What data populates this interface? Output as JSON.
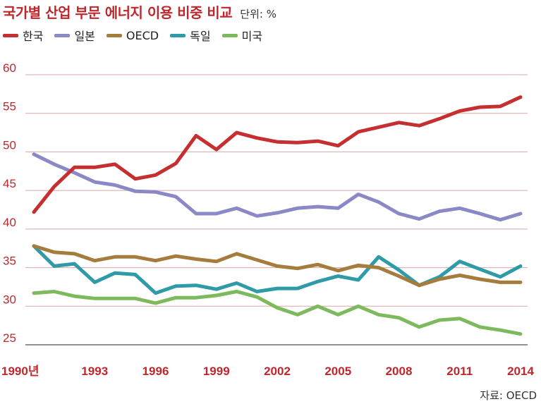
{
  "chart_data": {
    "type": "line",
    "title": "국가별 산업 부문 에너지 이용 비중 비교",
    "unit": "단위: %",
    "source": "자료: OECD",
    "ylim": [
      25,
      60
    ],
    "yticks": [
      25,
      30,
      35,
      40,
      45,
      50,
      55,
      60
    ],
    "x": [
      1990,
      1991,
      1992,
      1993,
      1994,
      1995,
      1996,
      1997,
      1998,
      1999,
      2000,
      2001,
      2002,
      2003,
      2004,
      2005,
      2006,
      2007,
      2008,
      2009,
      2010,
      2011,
      2012,
      2013,
      2014
    ],
    "xticks": [
      {
        "year": 1990,
        "label": "1990년"
      },
      {
        "year": 1993,
        "label": "1993"
      },
      {
        "year": 1996,
        "label": "1996"
      },
      {
        "year": 1999,
        "label": "1999"
      },
      {
        "year": 2002,
        "label": "2002"
      },
      {
        "year": 2005,
        "label": "2005"
      },
      {
        "year": 2008,
        "label": "2008"
      },
      {
        "year": 2011,
        "label": "2011"
      },
      {
        "year": 2014,
        "label": "2014"
      }
    ],
    "grid": true,
    "legend_position": "top-left",
    "series": [
      {
        "name": "한국",
        "color": "#c52f2f",
        "values": [
          42.2,
          45.5,
          48.0,
          48.0,
          48.4,
          46.5,
          47.0,
          48.5,
          52.1,
          50.3,
          52.5,
          51.8,
          51.3,
          51.2,
          51.4,
          50.8,
          52.6,
          53.2,
          53.8,
          53.4,
          54.3,
          55.3,
          55.8,
          55.9,
          57.1
        ]
      },
      {
        "name": "일본",
        "color": "#8b88c7",
        "values": [
          49.7,
          48.4,
          47.3,
          46.1,
          45.7,
          44.9,
          44.8,
          44.2,
          42.0,
          42.0,
          42.7,
          41.7,
          42.1,
          42.7,
          42.9,
          42.7,
          44.5,
          43.5,
          42.0,
          41.3,
          42.3,
          42.7,
          42.0,
          41.2,
          42.0
        ]
      },
      {
        "name": "OECD",
        "color": "#a67c3d",
        "values": [
          37.8,
          37.0,
          36.8,
          35.9,
          36.4,
          36.4,
          35.9,
          36.5,
          36.1,
          35.8,
          36.8,
          36.0,
          35.2,
          34.9,
          35.4,
          34.6,
          35.3,
          35.0,
          33.9,
          32.7,
          33.5,
          34.0,
          33.5,
          33.1,
          33.1
        ]
      },
      {
        "name": "독일",
        "color": "#2f9aa8",
        "values": [
          37.8,
          35.2,
          35.5,
          33.1,
          34.3,
          34.1,
          31.7,
          32.6,
          32.7,
          32.2,
          33.0,
          31.9,
          32.3,
          32.3,
          33.2,
          33.9,
          33.4,
          36.4,
          34.7,
          32.7,
          33.8,
          35.8,
          34.8,
          33.8,
          35.2
        ]
      },
      {
        "name": "미국",
        "color": "#7dba5d",
        "values": [
          31.7,
          31.9,
          31.3,
          31.0,
          31.0,
          31.0,
          30.4,
          31.1,
          31.1,
          31.4,
          31.9,
          31.2,
          29.8,
          28.9,
          30.0,
          28.9,
          30.0,
          28.9,
          28.5,
          27.3,
          28.2,
          28.4,
          27.3,
          26.9,
          26.4
        ]
      }
    ]
  }
}
